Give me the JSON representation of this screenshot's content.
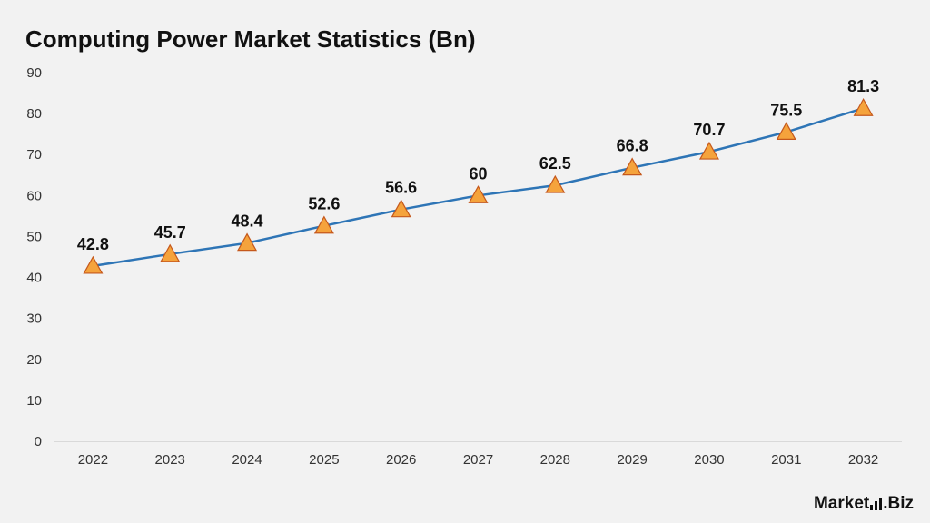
{
  "brand": {
    "name_part1": "Market",
    "name_part2": ".Biz"
  },
  "colors": {
    "line": "#2e75b6",
    "marker_fill": "#f5a33c",
    "marker_stroke": "#c5581c",
    "background": "#f2f2f2"
  },
  "chart_data": {
    "type": "line",
    "title": "Computing Power Market Statistics (Bn)",
    "xlabel": "",
    "ylabel": "",
    "categories": [
      "2022",
      "2023",
      "2024",
      "2025",
      "2026",
      "2027",
      "2028",
      "2029",
      "2030",
      "2031",
      "2032"
    ],
    "series": [
      {
        "values": [
          42.8,
          45.7,
          48.4,
          52.6,
          56.6,
          60,
          62.5,
          66.8,
          70.7,
          75.5,
          81.3
        ],
        "data_labels": [
          "42.8",
          "45.7",
          "48.4",
          "52.6",
          "56.6",
          "60",
          "62.5",
          "66.8",
          "70.7",
          "75.5",
          "81.3"
        ]
      }
    ],
    "ylim": [
      0,
      90
    ],
    "yticks": [
      0,
      10,
      20,
      30,
      40,
      50,
      60,
      70,
      80,
      90
    ],
    "marker": "triangle",
    "grid": false,
    "legend": "none"
  }
}
